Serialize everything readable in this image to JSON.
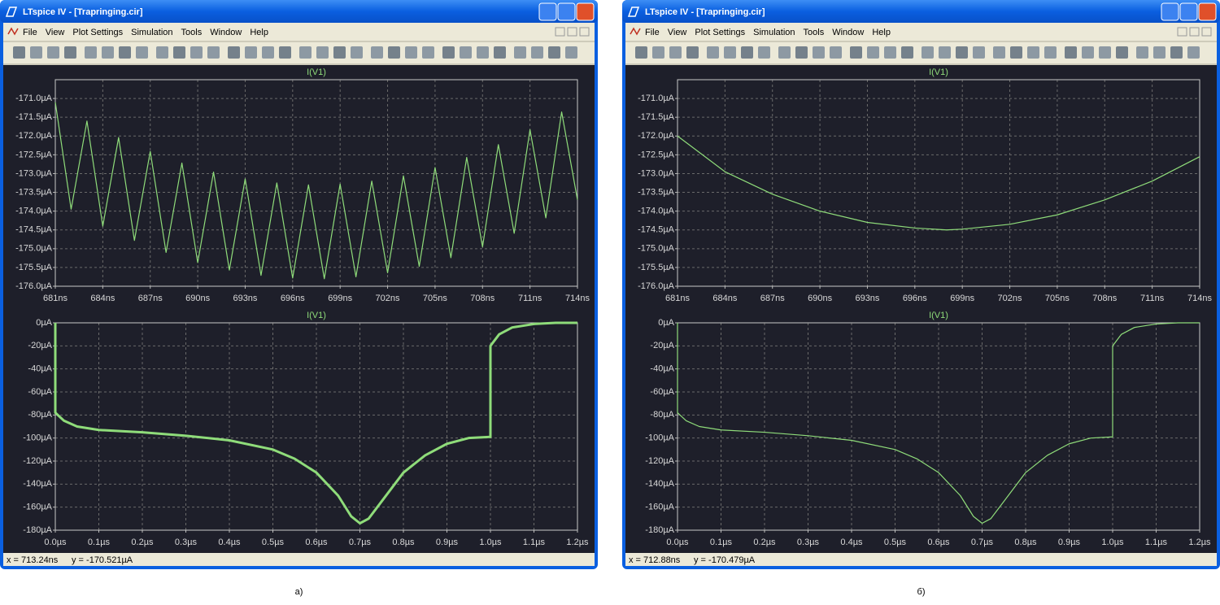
{
  "windows": [
    {
      "title": "LTspice IV - [Trapringing.cir]",
      "menu": [
        "File",
        "View",
        "Plot Settings",
        "Simulation",
        "Tools",
        "Window",
        "Help"
      ],
      "status": [
        "x = 713.24ns",
        "y = -170.521µA"
      ],
      "caption": "а)"
    },
    {
      "title": "LTspice IV - [Trapringing.cir]",
      "menu": [
        "File",
        "View",
        "Plot Settings",
        "Simulation",
        "Tools",
        "Window",
        "Help"
      ],
      "status": [
        "x = 712.88ns",
        "y = -170.479µA"
      ],
      "caption": "б)"
    }
  ],
  "chart_data": [
    {
      "type": "line",
      "title": "I(V1)",
      "x": [
        681,
        682,
        683,
        684,
        685,
        686,
        687,
        688,
        689,
        690,
        691,
        692,
        693,
        694,
        695,
        696,
        697,
        698,
        699,
        700,
        701,
        702,
        703,
        704,
        705,
        706,
        707,
        708,
        709,
        710,
        711,
        712,
        713,
        714
      ],
      "series": [
        {
          "color": "#8fdc7a",
          "values": [
            -171.1,
            -173.95,
            -171.6,
            -174.4,
            -172.04,
            -174.78,
            -172.41,
            -175.1,
            -172.72,
            -175.37,
            -172.96,
            -175.57,
            -173.14,
            -175.71,
            -173.25,
            -175.78,
            -173.3,
            -175.8,
            -173.28,
            -175.75,
            -173.2,
            -175.64,
            -173.06,
            -175.47,
            -172.84,
            -175.24,
            -172.57,
            -174.95,
            -172.23,
            -174.59,
            -171.83,
            -174.18,
            -171.36,
            -173.7
          ]
        }
      ],
      "xlim": [
        681,
        714
      ],
      "ylim": [
        -176,
        -170.5
      ],
      "xticks": [
        {
          "value": 681,
          "label": "681ns"
        },
        {
          "value": 684,
          "label": "684ns"
        },
        {
          "value": 687,
          "label": "687ns"
        },
        {
          "value": 690,
          "label": "690ns"
        },
        {
          "value": 693,
          "label": "693ns"
        },
        {
          "value": 696,
          "label": "696ns"
        },
        {
          "value": 699,
          "label": "699ns"
        },
        {
          "value": 702,
          "label": "702ns"
        },
        {
          "value": 705,
          "label": "705ns"
        },
        {
          "value": 708,
          "label": "708ns"
        },
        {
          "value": 711,
          "label": "711ns"
        },
        {
          "value": 714,
          "label": "714ns"
        }
      ],
      "yticks": [
        {
          "value": -171,
          "label": "-171.0µA"
        },
        {
          "value": -171.5,
          "label": "-171.5µA"
        },
        {
          "value": -172,
          "label": "-172.0µA"
        },
        {
          "value": -172.5,
          "label": "-172.5µA"
        },
        {
          "value": -173,
          "label": "-173.0µA"
        },
        {
          "value": -173.5,
          "label": "-173.5µA"
        },
        {
          "value": -174,
          "label": "-174.0µA"
        },
        {
          "value": -174.5,
          "label": "-174.5µA"
        },
        {
          "value": -175,
          "label": "-175.0µA"
        },
        {
          "value": -175.5,
          "label": "-175.5µA"
        },
        {
          "value": -176,
          "label": "-176.0µA"
        }
      ],
      "grid": true
    },
    {
      "type": "line",
      "title": "I(V1)",
      "x": [
        0,
        0,
        0.02,
        0.05,
        0.1,
        0.2,
        0.3,
        0.4,
        0.5,
        0.55,
        0.6,
        0.65,
        0.68,
        0.7,
        0.72,
        0.75,
        0.8,
        0.85,
        0.9,
        0.95,
        1.0,
        1.0,
        1.02,
        1.05,
        1.1,
        1.15,
        1.2
      ],
      "series": [
        {
          "color": "#8fdc7a",
          "values": [
            0,
            -78,
            -85,
            -90,
            -93,
            -95,
            -98,
            -102,
            -110,
            -118,
            -130,
            -150,
            -168,
            -174,
            -170,
            -155,
            -130,
            -115,
            -105,
            -100,
            -99,
            -20,
            -10,
            -4,
            -1,
            0,
            0
          ]
        }
      ],
      "line_width": 3,
      "xlim": [
        0,
        1.2
      ],
      "ylim": [
        -180,
        0
      ],
      "xticks": [
        {
          "value": 0,
          "label": "0.0µs"
        },
        {
          "value": 0.1,
          "label": "0.1µs"
        },
        {
          "value": 0.2,
          "label": "0.2µs"
        },
        {
          "value": 0.3,
          "label": "0.3µs"
        },
        {
          "value": 0.4,
          "label": "0.4µs"
        },
        {
          "value": 0.5,
          "label": "0.5µs"
        },
        {
          "value": 0.6,
          "label": "0.6µs"
        },
        {
          "value": 0.7,
          "label": "0.7µs"
        },
        {
          "value": 0.8,
          "label": "0.8µs"
        },
        {
          "value": 0.9,
          "label": "0.9µs"
        },
        {
          "value": 1.0,
          "label": "1.0µs"
        },
        {
          "value": 1.1,
          "label": "1.1µs"
        },
        {
          "value": 1.2,
          "label": "1.2µs"
        }
      ],
      "yticks": [
        {
          "value": 0,
          "label": "0µA"
        },
        {
          "value": -20,
          "label": "-20µA"
        },
        {
          "value": -40,
          "label": "-40µA"
        },
        {
          "value": -60,
          "label": "-60µA"
        },
        {
          "value": -80,
          "label": "-80µA"
        },
        {
          "value": -100,
          "label": "-100µA"
        },
        {
          "value": -120,
          "label": "-120µA"
        },
        {
          "value": -140,
          "label": "-140µA"
        },
        {
          "value": -160,
          "label": "-160µA"
        },
        {
          "value": -180,
          "label": "-180µA"
        }
      ],
      "grid": true
    },
    {
      "type": "line",
      "title": "I(V1)",
      "x": [
        681,
        684,
        687,
        690,
        693,
        696,
        698,
        699,
        702,
        705,
        708,
        711,
        714
      ],
      "series": [
        {
          "color": "#8fdc7a",
          "values": [
            -172.0,
            -172.95,
            -173.55,
            -174.0,
            -174.3,
            -174.45,
            -174.5,
            -174.48,
            -174.35,
            -174.1,
            -173.7,
            -173.2,
            -172.55
          ]
        }
      ],
      "xlim": [
        681,
        714
      ],
      "ylim": [
        -176,
        -170.5
      ],
      "xticks": [
        {
          "value": 681,
          "label": "681ns"
        },
        {
          "value": 684,
          "label": "684ns"
        },
        {
          "value": 687,
          "label": "687ns"
        },
        {
          "value": 690,
          "label": "690ns"
        },
        {
          "value": 693,
          "label": "693ns"
        },
        {
          "value": 696,
          "label": "696ns"
        },
        {
          "value": 699,
          "label": "699ns"
        },
        {
          "value": 702,
          "label": "702ns"
        },
        {
          "value": 705,
          "label": "705ns"
        },
        {
          "value": 708,
          "label": "708ns"
        },
        {
          "value": 711,
          "label": "711ns"
        },
        {
          "value": 714,
          "label": "714ns"
        }
      ],
      "yticks": [
        {
          "value": -171,
          "label": "-171.0µA"
        },
        {
          "value": -171.5,
          "label": "-171.5µA"
        },
        {
          "value": -172,
          "label": "-172.0µA"
        },
        {
          "value": -172.5,
          "label": "-172.5µA"
        },
        {
          "value": -173,
          "label": "-173.0µA"
        },
        {
          "value": -173.5,
          "label": "-173.5µA"
        },
        {
          "value": -174,
          "label": "-174.0µA"
        },
        {
          "value": -174.5,
          "label": "-174.5µA"
        },
        {
          "value": -175,
          "label": "-175.0µA"
        },
        {
          "value": -175.5,
          "label": "-175.5µA"
        },
        {
          "value": -176,
          "label": "-176.0µA"
        }
      ],
      "grid": true
    },
    {
      "type": "line",
      "title": "I(V1)",
      "x": [
        0,
        0,
        0.02,
        0.05,
        0.1,
        0.2,
        0.3,
        0.4,
        0.5,
        0.55,
        0.6,
        0.65,
        0.68,
        0.7,
        0.72,
        0.75,
        0.8,
        0.85,
        0.9,
        0.95,
        1.0,
        1.0,
        1.02,
        1.05,
        1.1,
        1.15,
        1.2
      ],
      "series": [
        {
          "color": "#8fdc7a",
          "values": [
            0,
            -78,
            -85,
            -90,
            -93,
            -95,
            -98,
            -102,
            -110,
            -118,
            -130,
            -150,
            -168,
            -174,
            -170,
            -155,
            -130,
            -115,
            -105,
            -100,
            -99,
            -20,
            -10,
            -4,
            -1,
            0,
            0
          ]
        }
      ],
      "xlim": [
        0,
        1.2
      ],
      "ylim": [
        -180,
        0
      ],
      "xticks": [
        {
          "value": 0,
          "label": "0.0µs"
        },
        {
          "value": 0.1,
          "label": "0.1µs"
        },
        {
          "value": 0.2,
          "label": "0.2µs"
        },
        {
          "value": 0.3,
          "label": "0.3µs"
        },
        {
          "value": 0.4,
          "label": "0.4µs"
        },
        {
          "value": 0.5,
          "label": "0.5µs"
        },
        {
          "value": 0.6,
          "label": "0.6µs"
        },
        {
          "value": 0.7,
          "label": "0.7µs"
        },
        {
          "value": 0.8,
          "label": "0.8µs"
        },
        {
          "value": 0.9,
          "label": "0.9µs"
        },
        {
          "value": 1.0,
          "label": "1.0µs"
        },
        {
          "value": 1.1,
          "label": "1.1µs"
        },
        {
          "value": 1.2,
          "label": "1.2µs"
        }
      ],
      "yticks": [
        {
          "value": 0,
          "label": "0µA"
        },
        {
          "value": -20,
          "label": "-20µA"
        },
        {
          "value": -40,
          "label": "-40µA"
        },
        {
          "value": -60,
          "label": "-60µA"
        },
        {
          "value": -80,
          "label": "-80µA"
        },
        {
          "value": -100,
          "label": "-100µA"
        },
        {
          "value": -120,
          "label": "-120µA"
        },
        {
          "value": -140,
          "label": "-140µA"
        },
        {
          "value": -160,
          "label": "-160µA"
        },
        {
          "value": -180,
          "label": "-180µA"
        }
      ],
      "grid": true
    }
  ]
}
